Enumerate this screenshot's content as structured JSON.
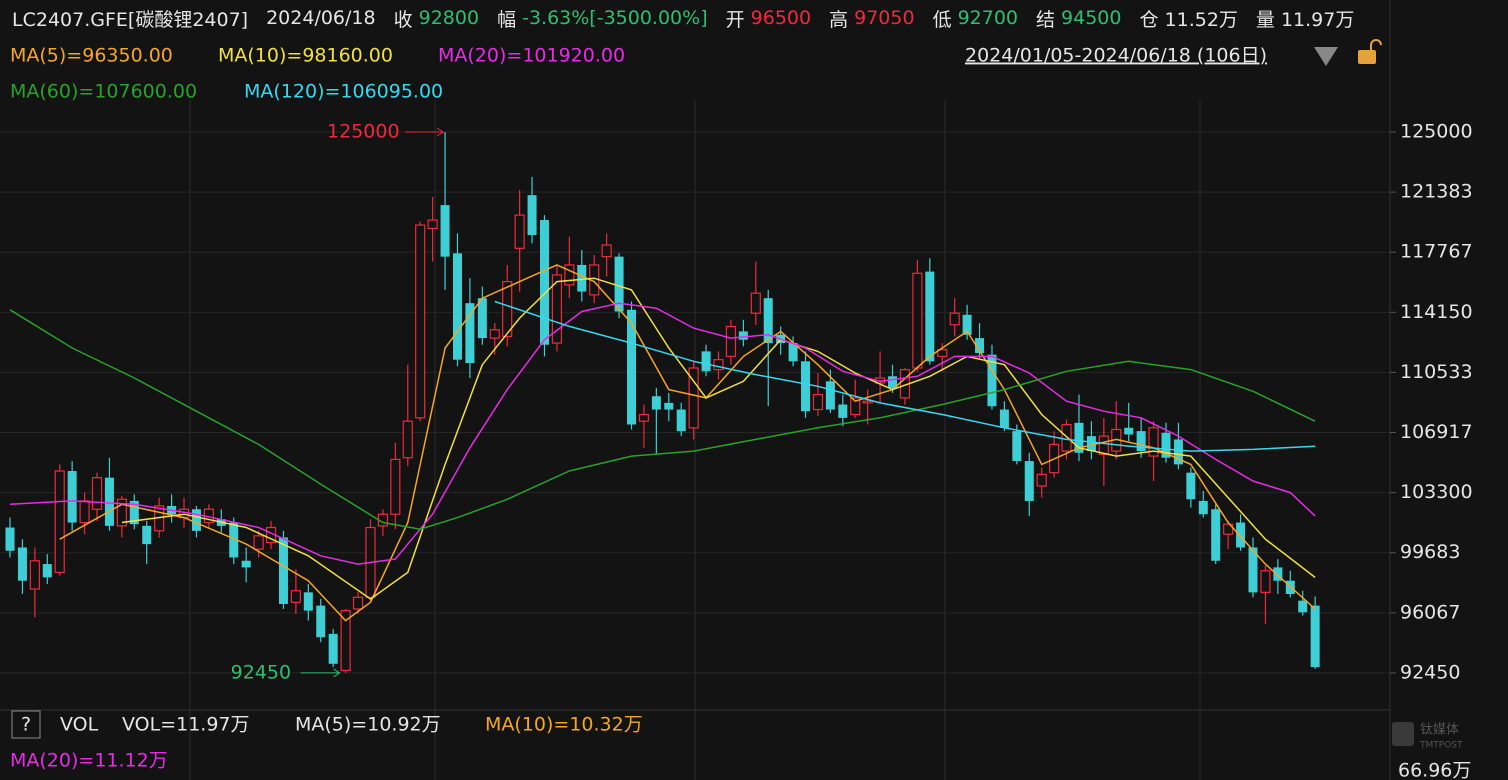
{
  "header": {
    "symbol": "LC2407.GFE[碳酸锂2407]",
    "date": "2024/06/18",
    "close_label": "收",
    "close": "92800",
    "change_label": "幅",
    "change": "-3.63%[-3500.00%]",
    "open_label": "开",
    "open": "96500",
    "high_label": "高",
    "high": "97050",
    "low_label": "低",
    "low": "92700",
    "settle_label": "结",
    "settle": "94500",
    "oi_label": "仓",
    "oi": "11.52万",
    "vol_label": "量",
    "vol": "11.97万"
  },
  "range": "2024/01/05-2024/06/18 (106日)",
  "volume_panel": {
    "help": "?",
    "title": "VOL",
    "vol": "VOL=11.97万",
    "ma5": "MA(5)=10.92万",
    "ma10": "MA(10)=10.32万",
    "ma20": "MA(20)=11.12万",
    "axis_label": "66.96万"
  },
  "watermark": {
    "cn": "钛媒体",
    "en": "TMTPOST"
  },
  "chart_data": {
    "type": "candlestick",
    "up_color": "#ee2a3c",
    "down_color": "#3ecfd6",
    "ylim": [
      90340,
      126625
    ],
    "yticks": [
      92450,
      96067,
      99683,
      103300,
      106917,
      110533,
      114150,
      117767,
      121383,
      125000
    ],
    "open": [
      101200,
      100000,
      97500,
      99000,
      98500,
      104600,
      101500,
      102300,
      104200,
      101300,
      102800,
      101300,
      101000,
      102500,
      101800,
      102300,
      101500,
      101700,
      101500,
      99200,
      99900,
      100300,
      100600,
      96700,
      97300,
      96500,
      94800,
      92600,
      96300,
      97000,
      101300,
      102000,
      105400,
      107800,
      119200,
      120600,
      117700,
      114700,
      115000,
      112600,
      112700,
      118000,
      121200,
      119700,
      112300,
      115800,
      117000,
      115200,
      117500,
      117500,
      114300,
      107600,
      109100,
      108700,
      108300,
      107200,
      111800,
      110700,
      111500,
      113000,
      114100,
      115000,
      112800,
      112300,
      111200,
      108300,
      110000,
      108600,
      108000,
      108700,
      109900,
      110300,
      109000,
      110800,
      116600,
      111500,
      113400,
      114000,
      112600,
      111600,
      108300,
      107000,
      105200,
      103700,
      104500,
      105800,
      107500,
      106700,
      105600,
      105800,
      107200,
      107000,
      105500,
      106900,
      106500,
      104500,
      102800,
      102300,
      100800,
      101500,
      100000,
      97300,
      98800,
      98000,
      96800,
      96500
    ],
    "high": [
      101800,
      100500,
      100000,
      99600,
      105000,
      105200,
      103300,
      104500,
      105400,
      103100,
      103200,
      101600,
      103000,
      103200,
      103000,
      102500,
      102600,
      102300,
      101800,
      100000,
      101000,
      101600,
      101000,
      98700,
      97800,
      96900,
      95100,
      96300,
      97300,
      101700,
      102300,
      106300,
      111000,
      119600,
      121100,
      125000,
      118900,
      116200,
      115700,
      113500,
      117000,
      121500,
      122300,
      120000,
      117000,
      118700,
      117900,
      117600,
      118900,
      117700,
      114800,
      108600,
      109600,
      109300,
      108700,
      111200,
      112200,
      111800,
      113700,
      113700,
      117200,
      115500,
      113300,
      112700,
      111800,
      110500,
      110700,
      109200,
      110100,
      109500,
      111800,
      111000,
      110800,
      117300,
      117400,
      112300,
      115000,
      114600,
      113500,
      112200,
      108800,
      107400,
      105700,
      104800,
      107000,
      107700,
      109200,
      107600,
      107800,
      108800,
      108700,
      107800,
      107600,
      107500,
      107500,
      104800,
      103400,
      102600,
      101600,
      102000,
      100600,
      98900,
      99300,
      98600,
      97400,
      97050
    ],
    "low": [
      99400,
      97200,
      95800,
      97800,
      98300,
      101000,
      100800,
      101600,
      101000,
      100600,
      101100,
      99000,
      100600,
      101500,
      101200,
      100600,
      101200,
      100900,
      99000,
      97900,
      99400,
      99900,
      96300,
      96000,
      95600,
      94300,
      92800,
      92450,
      96000,
      96700,
      100700,
      101100,
      104900,
      107600,
      117200,
      115500,
      110900,
      110200,
      112200,
      111600,
      112100,
      115400,
      118300,
      111500,
      111800,
      115000,
      114800,
      114700,
      116300,
      113800,
      107100,
      106000,
      105600,
      107600,
      106700,
      106500,
      110300,
      110100,
      111000,
      112100,
      113400,
      108500,
      111600,
      110900,
      107800,
      107900,
      108100,
      107300,
      107800,
      107400,
      108700,
      109300,
      108600,
      110600,
      111000,
      110600,
      112700,
      112500,
      111400,
      108300,
      107000,
      105000,
      101900,
      103000,
      104200,
      105300,
      105200,
      105300,
      103700,
      105300,
      106400,
      105400,
      104000,
      105100,
      104700,
      102400,
      101800,
      99000,
      99900,
      99800,
      97000,
      95400,
      97200,
      97000,
      95900,
      92700
    ],
    "close": [
      99800,
      98000,
      99200,
      98200,
      104600,
      101500,
      102800,
      104200,
      101300,
      102900,
      101400,
      100200,
      102500,
      102000,
      102300,
      101000,
      102300,
      101300,
      99400,
      98800,
      100700,
      101200,
      96600,
      97400,
      96200,
      94600,
      93000,
      96200,
      97000,
      101200,
      102000,
      105300,
      107600,
      119400,
      119700,
      117500,
      111300,
      111100,
      112600,
      113100,
      116000,
      120000,
      118800,
      112200,
      116400,
      117000,
      115400,
      117000,
      118200,
      114200,
      107400,
      108000,
      108300,
      108300,
      107000,
      110800,
      110600,
      111300,
      113300,
      112500,
      115300,
      112300,
      112300,
      111200,
      108200,
      109200,
      108300,
      107800,
      109000,
      108800,
      110200,
      109600,
      110700,
      116500,
      111200,
      111900,
      114100,
      112800,
      111700,
      108500,
      107200,
      105200,
      102800,
      104400,
      106200,
      107400,
      105700,
      105800,
      106700,
      107100,
      106800,
      105800,
      107200,
      105400,
      105000,
      102900,
      102000,
      99200,
      101400,
      100000,
      97300,
      98600,
      98000,
      97200,
      96100,
      92800
    ],
    "high_label_index": 35,
    "low_label_index": 27,
    "series": [
      {
        "name": "MA(5)=96350.00",
        "color": "#f5a623",
        "x": [
          4,
          9,
          14,
          19,
          24,
          27,
          29,
          32,
          35,
          38,
          41,
          44,
          47,
          50,
          53,
          56,
          59,
          62,
          65,
          68,
          71,
          74,
          77,
          80,
          83,
          86,
          89,
          92,
          95,
          98,
          101,
          105
        ],
        "values": [
          100500,
          102600,
          101800,
          100200,
          98000,
          95600,
          96700,
          101500,
          112000,
          115000,
          116000,
          117000,
          116000,
          113500,
          109500,
          109000,
          111500,
          113000,
          111000,
          108800,
          109500,
          111500,
          113000,
          109500,
          105000,
          106000,
          106500,
          106000,
          105000,
          101500,
          99000,
          96300
        ]
      },
      {
        "name": "MA(10)=98160.00",
        "color": "#f0e040",
        "x": [
          9,
          14,
          19,
          24,
          29,
          32,
          35,
          38,
          41,
          44,
          47,
          50,
          53,
          56,
          59,
          62,
          65,
          68,
          71,
          74,
          77,
          80,
          83,
          86,
          89,
          92,
          95,
          98,
          101,
          105
        ],
        "values": [
          101500,
          102000,
          101200,
          99500,
          96900,
          98500,
          105000,
          111000,
          113800,
          116000,
          116200,
          115500,
          112000,
          109000,
          110000,
          112500,
          111800,
          110500,
          109500,
          110300,
          111500,
          111000,
          108000,
          106000,
          105500,
          105800,
          105500,
          103000,
          100500,
          98200
        ]
      },
      {
        "name": "MA(20)=101920.00",
        "color": "#e62ce6",
        "x": [
          0,
          5,
          10,
          15,
          20,
          25,
          28,
          31,
          34,
          37,
          40,
          43,
          46,
          49,
          52,
          55,
          58,
          61,
          64,
          67,
          70,
          73,
          76,
          79,
          82,
          85,
          88,
          91,
          94,
          97,
          100,
          103,
          105
        ],
        "values": [
          102600,
          102800,
          102600,
          102000,
          101200,
          99500,
          99000,
          99300,
          102000,
          106000,
          109500,
          112500,
          114200,
          114700,
          114400,
          113200,
          112600,
          112800,
          112000,
          110600,
          110000,
          110300,
          111500,
          111500,
          110500,
          108800,
          108200,
          107800,
          106700,
          105300,
          104000,
          103300,
          101900
        ]
      },
      {
        "name": "MA(60)=107600.00",
        "color": "#2aa12a",
        "x": [
          0,
          5,
          10,
          15,
          20,
          25,
          30,
          33,
          36,
          40,
          45,
          50,
          55,
          60,
          65,
          70,
          75,
          80,
          85,
          90,
          95,
          100,
          105
        ],
        "values": [
          114300,
          112000,
          110200,
          108200,
          106200,
          103800,
          101500,
          101100,
          101800,
          102900,
          104600,
          105500,
          105800,
          106500,
          107200,
          107800,
          108600,
          109500,
          110600,
          111200,
          110700,
          109400,
          107600
        ]
      },
      {
        "name": "MA(120)=106095.00",
        "color": "#38d8ef",
        "x": [
          39,
          45,
          50,
          55,
          60,
          65,
          70,
          75,
          80,
          85,
          90,
          95,
          100,
          105
        ],
        "values": [
          114800,
          113300,
          112300,
          111200,
          110400,
          109700,
          108700,
          108000,
          107200,
          106500,
          106100,
          105800,
          105900,
          106095
        ]
      }
    ]
  }
}
